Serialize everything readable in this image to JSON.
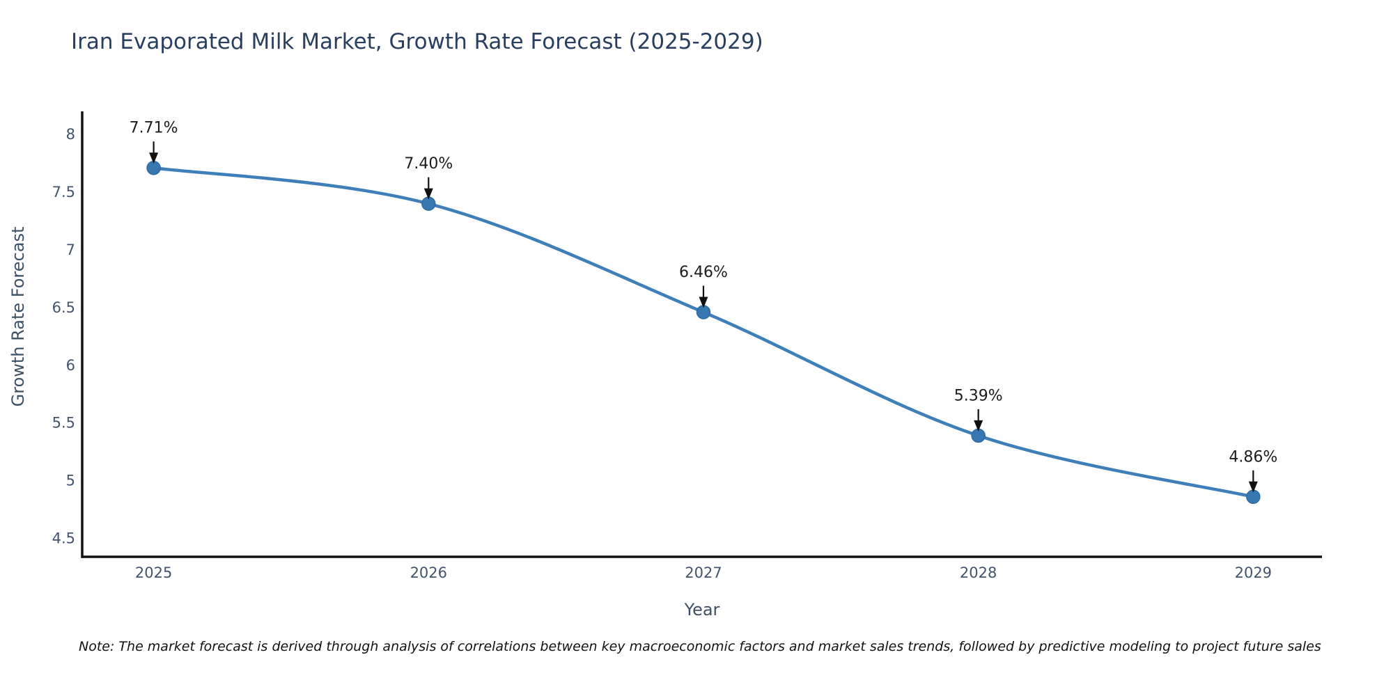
{
  "title": "Iran Evaporated Milk Market, Growth Rate Forecast (2025-2029)",
  "note": "Note: The market forecast is derived through analysis of correlations between key macroeconomic factors and market sales trends, followed by predictive modeling to project future sales",
  "colors": {
    "background": "#ffffff",
    "line": "#3e7fba",
    "marker_fill": "#3878b2",
    "marker_edge": "#2f6ba3",
    "axis_line": "#111111",
    "title_text": "#2a3f5f",
    "axis_text": "#3d5064",
    "tick_text": "#42536b",
    "annotation_text": "#1c1c1c",
    "arrow": "#111111"
  },
  "chart_data": {
    "type": "line",
    "title": "Iran Evaporated Milk Market, Growth Rate Forecast (2025-2029)",
    "x": [
      2025,
      2026,
      2027,
      2028,
      2029
    ],
    "values": [
      7.71,
      7.4,
      6.46,
      5.39,
      4.86
    ],
    "point_labels": [
      "7.71%",
      "7.40%",
      "6.46%",
      "5.39%",
      "4.86%"
    ],
    "xlabel": "Year",
    "ylabel": "Growth Rate Forecast",
    "xticks": [
      2025,
      2026,
      2027,
      2028,
      2029
    ],
    "yticks": [
      4.5,
      5,
      5.5,
      6,
      6.5,
      7,
      7.5,
      8
    ],
    "xlim": [
      2024.74,
      2029.25
    ],
    "ylim": [
      4.34,
      8.2
    ],
    "grid": false,
    "legend": false,
    "line_shape": "spline",
    "markers": true,
    "annotation_style": "arrow-down"
  }
}
